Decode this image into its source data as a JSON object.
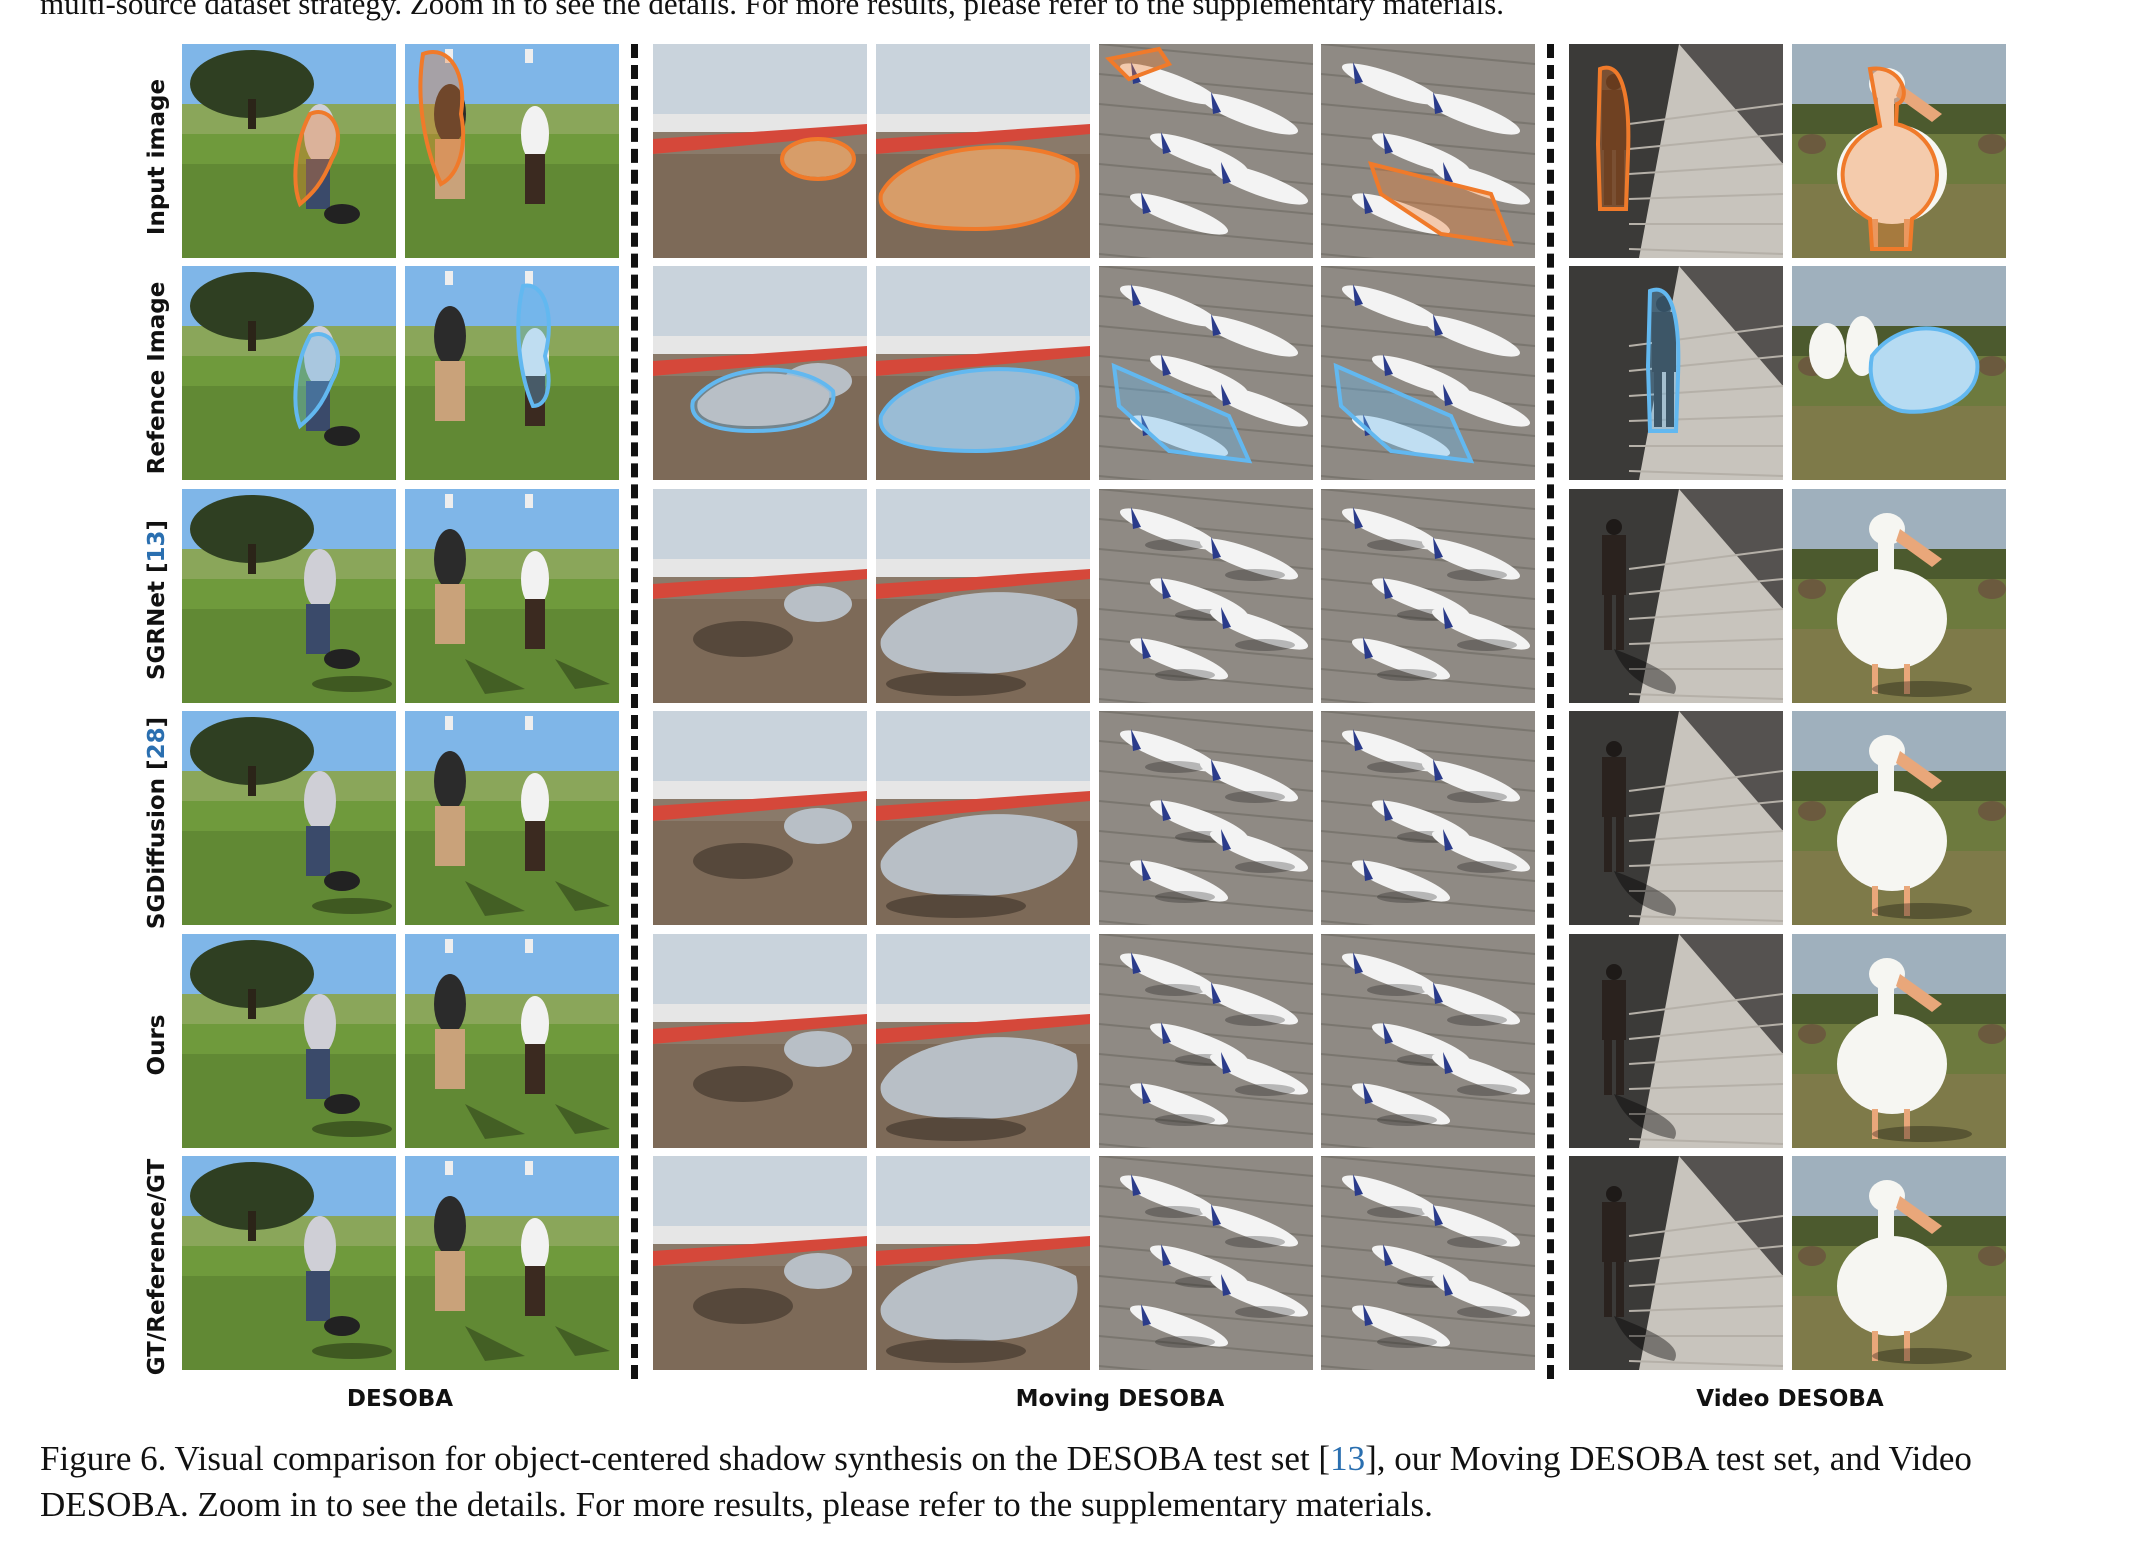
{
  "top_text": "multi-source dataset strategy. Zoom in to see the details. For more results, please refer to the supplementary materials.",
  "rows": [
    {
      "label": "Input image",
      "ref": ""
    },
    {
      "label": "Refence Image",
      "ref": ""
    },
    {
      "label": "SGRNet [",
      "ref": "13",
      "suffix": "]"
    },
    {
      "label": "SGDiffusion [",
      "ref": "28",
      "suffix": "]"
    },
    {
      "label": "Ours",
      "ref": ""
    },
    {
      "label": "GT/Reference/GT",
      "ref": ""
    }
  ],
  "groups": {
    "desoba": "DESOBA",
    "moving": "Moving DESOBA",
    "video": "Video DESOBA"
  },
  "caption": {
    "part1": "Figure 6. Visual comparison for object-centered shadow synthesis on the DESOBA test set [",
    "ref": "13",
    "part2": "], our Moving DESOBA test set, and Video DESOBA. Zoom in to see the details. For more results, please refer to the supplementary materials."
  },
  "colors": {
    "input_outline": "#f07a2a",
    "reference_outline": "#62b8f0",
    "citation": "#2a6fb0"
  }
}
